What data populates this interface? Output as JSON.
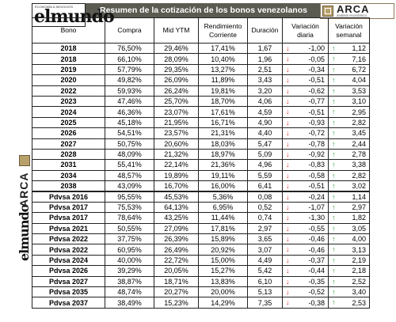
{
  "header": {
    "title": "Resumen de la cotización de los bonos venezolanos",
    "logo_left": "elmundo",
    "logo_left_tag": "ECONOMÍA & NEGOCIOS",
    "logo_right": "ARCA",
    "logo_right_sub": "análisis económico"
  },
  "columns": [
    "Bono",
    "Compra",
    "Mid YTM",
    "Rendimiento Corriente",
    "Duración",
    "Variación diaria",
    "Variación semanal"
  ],
  "colors": {
    "header_bar": "#5b5b52",
    "down": "#d9261c",
    "up": "#2e9e3a"
  },
  "icons": {
    "down": "arrow-down-icon",
    "up": "arrow-up-icon"
  },
  "rows": [
    {
      "bono": "2018",
      "compra": "76,50%",
      "ytm": "29,46%",
      "rend": "17,41%",
      "dur": "1,67",
      "vd": "-1,00",
      "vd_dir": "down",
      "vs": "1,12",
      "vs_dir": "up"
    },
    {
      "bono": "2018",
      "compra": "66,10%",
      "ytm": "28,09%",
      "rend": "10,40%",
      "dur": "1,96",
      "vd": "-0,05",
      "vd_dir": "down",
      "vs": "7,16",
      "vs_dir": "up"
    },
    {
      "bono": "2019",
      "compra": "57,79%",
      "ytm": "29,35%",
      "rend": "13,27%",
      "dur": "2,51",
      "vd": "-0,34",
      "vd_dir": "down",
      "vs": "6,72",
      "vs_dir": "up"
    },
    {
      "bono": "2020",
      "compra": "49,82%",
      "ytm": "26,09%",
      "rend": "11,89%",
      "dur": "3,43",
      "vd": "-0,51",
      "vd_dir": "down",
      "vs": "4,04",
      "vs_dir": "up"
    },
    {
      "bono": "2022",
      "compra": "59,93%",
      "ytm": "26,24%",
      "rend": "19,81%",
      "dur": "3,20",
      "vd": "-0,62",
      "vd_dir": "down",
      "vs": "3,53",
      "vs_dir": "up"
    },
    {
      "bono": "2023",
      "compra": "47,46%",
      "ytm": "25,70%",
      "rend": "18,70%",
      "dur": "4,06",
      "vd": "-0,77",
      "vd_dir": "down",
      "vs": "3,10",
      "vs_dir": "up"
    },
    {
      "bono": "2024",
      "compra": "46,36%",
      "ytm": "23,07%",
      "rend": "17,61%",
      "dur": "4,59",
      "vd": "-0,51",
      "vd_dir": "down",
      "vs": "2,95",
      "vs_dir": "up"
    },
    {
      "bono": "2025",
      "compra": "45,18%",
      "ytm": "21,95%",
      "rend": "16,71%",
      "dur": "4,90",
      "vd": "-0,93",
      "vd_dir": "down",
      "vs": "2,82",
      "vs_dir": "up"
    },
    {
      "bono": "2026",
      "compra": "54,51%",
      "ytm": "23,57%",
      "rend": "21,31%",
      "dur": "4,40",
      "vd": "-0,72",
      "vd_dir": "down",
      "vs": "3,45",
      "vs_dir": "up"
    },
    {
      "bono": "2027",
      "compra": "50,75%",
      "ytm": "20,60%",
      "rend": "18,03%",
      "dur": "5,47",
      "vd": "-0,78",
      "vd_dir": "down",
      "vs": "2,44",
      "vs_dir": "up"
    },
    {
      "bono": "2028",
      "compra": "48,09%",
      "ytm": "21,32%",
      "rend": "18,97%",
      "dur": "5,09",
      "vd": "-0,92",
      "vd_dir": "down",
      "vs": "2,78",
      "vs_dir": "up"
    },
    {
      "bono": "2031",
      "compra": "55,41%",
      "ytm": "22,14%",
      "rend": "21,36%",
      "dur": "4,96",
      "vd": "-0,83",
      "vd_dir": "down",
      "vs": "3,38",
      "vs_dir": "up"
    },
    {
      "bono": "2034",
      "compra": "48,57%",
      "ytm": "19,89%",
      "rend": "19,11%",
      "dur": "5,59",
      "vd": "-0,58",
      "vd_dir": "down",
      "vs": "2,82",
      "vs_dir": "up"
    },
    {
      "bono": "2038",
      "compra": "43,09%",
      "ytm": "16,70%",
      "rend": "16,00%",
      "dur": "6,41",
      "vd": "-0,51",
      "vd_dir": "down",
      "vs": "3,02",
      "vs_dir": "up"
    },
    {
      "bono": "Pdvsa 2016",
      "compra": "95,55%",
      "ytm": "45,53%",
      "rend": "5,36%",
      "dur": "0,08",
      "vd": "-0,24",
      "vd_dir": "down",
      "vs": "1,14",
      "vs_dir": "up",
      "sep": true
    },
    {
      "bono": "Pdvsa 2017",
      "compra": "75,53%",
      "ytm": "64,13%",
      "rend": "6,95%",
      "dur": "0,52",
      "vd": "-1,07",
      "vd_dir": "down",
      "vs": "2,97",
      "vs_dir": "up"
    },
    {
      "bono": "Pdvsa 2017",
      "compra": "78,64%",
      "ytm": "43,25%",
      "rend": "11,44%",
      "dur": "0,74",
      "vd": "-1,30",
      "vd_dir": "down",
      "vs": "1,82",
      "vs_dir": "up"
    },
    {
      "bono": "Pdvsa 2021",
      "compra": "50,55%",
      "ytm": "27,09%",
      "rend": "17,81%",
      "dur": "2,97",
      "vd": "-0,55",
      "vd_dir": "down",
      "vs": "3,05",
      "vs_dir": "up"
    },
    {
      "bono": "Pdvsa 2022",
      "compra": "37,75%",
      "ytm": "26,39%",
      "rend": "15,89%",
      "dur": "3,65",
      "vd": "-0,46",
      "vd_dir": "down",
      "vs": "4,00",
      "vs_dir": "up"
    },
    {
      "bono": "Pdvsa 2022",
      "compra": "60,95%",
      "ytm": "26,49%",
      "rend": "20,92%",
      "dur": "3,07",
      "vd": "-0,46",
      "vd_dir": "down",
      "vs": "3,13",
      "vs_dir": "up"
    },
    {
      "bono": "Pdvsa 2024",
      "compra": "40,00%",
      "ytm": "22,72%",
      "rend": "15,00%",
      "dur": "4,49",
      "vd": "-0,37",
      "vd_dir": "down",
      "vs": "2,19",
      "vs_dir": "up"
    },
    {
      "bono": "Pdvsa 2026",
      "compra": "39,29%",
      "ytm": "20,05%",
      "rend": "15,27%",
      "dur": "5,42",
      "vd": "-0,44",
      "vd_dir": "down",
      "vs": "2,18",
      "vs_dir": "up"
    },
    {
      "bono": "Pdvsa 2027",
      "compra": "38,87%",
      "ytm": "18,71%",
      "rend": "13,83%",
      "dur": "6,10",
      "vd": "-0,35",
      "vd_dir": "down",
      "vs": "2,52",
      "vs_dir": "up"
    },
    {
      "bono": "Pdvsa 2035",
      "compra": "48,74%",
      "ytm": "20,27%",
      "rend": "20,00%",
      "dur": "5,13",
      "vd": "-0,52",
      "vd_dir": "down",
      "vs": "3,40",
      "vs_dir": "up"
    },
    {
      "bono": "Pdvsa 2037",
      "compra": "38,49%",
      "ytm": "15,23%",
      "rend": "14,29%",
      "dur": "7,35",
      "vd": "-0,38",
      "vd_dir": "down",
      "vs": "2,53",
      "vs_dir": "up"
    }
  ]
}
